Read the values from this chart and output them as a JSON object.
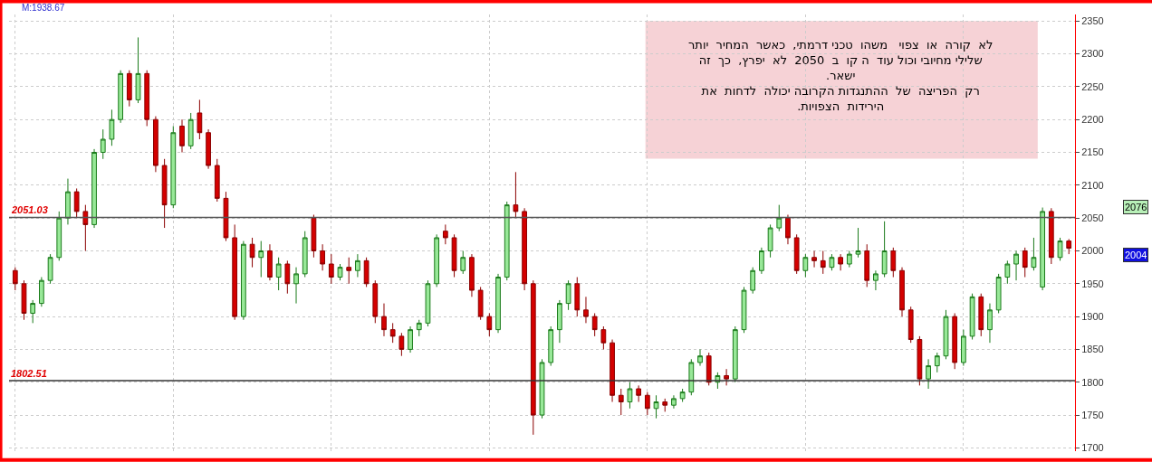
{
  "chart_data": {
    "type": "candlestick",
    "annotations": [
      {
        "text": "לא  קורה  או  צפוי   משהו  טכני דרמתי,  כאשר  המחיר  יותר\nשלילי מחיובי וכול עוד  ה קו  ב  2050  לא  יפרץ,  כך  זה\nישאר.\nרק  הפריצה  של  ההתנגדות הקרובה יכולה  לדחות  את\nהירידות  הצפויות."
      },
      "M:1938.67",
      "2076",
      "2004"
    ],
    "categories": [
      null,
      null,
      null,
      null,
      null,
      null,
      null,
      null,
      null,
      null,
      null,
      null,
      null,
      null,
      null,
      null,
      null,
      null,
      null,
      null,
      null,
      null,
      null,
      null,
      null,
      null,
      null,
      null,
      null,
      null,
      null,
      null,
      null,
      null,
      null,
      null,
      null,
      null,
      null,
      null,
      null,
      null,
      null,
      null,
      null,
      null,
      null,
      null,
      null,
      null,
      null,
      null,
      null,
      null,
      null,
      null,
      null,
      null,
      null,
      null,
      null,
      null,
      null,
      null,
      null,
      null,
      null,
      null,
      null,
      null,
      null,
      null,
      null,
      null,
      null,
      null,
      null,
      null,
      null,
      null,
      null,
      null,
      null,
      null,
      null,
      null,
      null,
      null,
      null,
      null,
      null,
      null,
      null,
      null,
      null,
      null,
      null,
      null,
      null,
      null,
      null,
      null,
      null,
      null,
      null,
      null,
      null,
      null,
      null,
      null,
      null,
      null,
      null,
      null,
      null,
      null,
      null,
      null,
      null,
      null,
      null
    ],
    "ohlc": [
      [
        1970,
        1975,
        1940,
        1950
      ],
      [
        1950,
        1955,
        1895,
        1905
      ],
      [
        1905,
        1925,
        1890,
        1920
      ],
      [
        1920,
        1960,
        1915,
        1955
      ],
      [
        1955,
        1995,
        1950,
        1990
      ],
      [
        1990,
        2060,
        1985,
        2050
      ],
      [
        2050,
        2110,
        2040,
        2090
      ],
      [
        2090,
        2095,
        2050,
        2060
      ],
      [
        2060,
        2070,
        2000,
        2040
      ],
      [
        2040,
        2155,
        2035,
        2150
      ],
      [
        2150,
        2185,
        2140,
        2170
      ],
      [
        2170,
        2215,
        2160,
        2200
      ],
      [
        2200,
        2275,
        2195,
        2270
      ],
      [
        2270,
        2275,
        2220,
        2230
      ],
      [
        2230,
        2325,
        2225,
        2270
      ],
      [
        2270,
        2275,
        2190,
        2200
      ],
      [
        2200,
        2205,
        2120,
        2130
      ],
      [
        2130,
        2140,
        2035,
        2070
      ],
      [
        2070,
        2190,
        2065,
        2180
      ],
      [
        2190,
        2200,
        2150,
        2160
      ],
      [
        2160,
        2210,
        2155,
        2200
      ],
      [
        2210,
        2230,
        2170,
        2180
      ],
      [
        2180,
        2185,
        2125,
        2130
      ],
      [
        2130,
        2140,
        2075,
        2080
      ],
      [
        2080,
        2090,
        2015,
        2020
      ],
      [
        2020,
        2040,
        1895,
        1900
      ],
      [
        1900,
        2015,
        1895,
        2010
      ],
      [
        2010,
        2020,
        1975,
        1990
      ],
      [
        1990,
        2015,
        1960,
        2000
      ],
      [
        2000,
        2010,
        1955,
        1960
      ],
      [
        1960,
        1990,
        1940,
        1980
      ],
      [
        1980,
        1985,
        1935,
        1950
      ],
      [
        1950,
        1975,
        1920,
        1965
      ],
      [
        1965,
        2030,
        1960,
        2020
      ],
      [
        2050,
        2055,
        1990,
        2000
      ],
      [
        2000,
        2010,
        1970,
        1980
      ],
      [
        1980,
        1995,
        1950,
        1960
      ],
      [
        1960,
        1980,
        1955,
        1975
      ],
      [
        1975,
        1990,
        1950,
        1970
      ],
      [
        1970,
        1995,
        1960,
        1985
      ],
      [
        1985,
        1990,
        1945,
        1950
      ],
      [
        1950,
        1955,
        1890,
        1900
      ],
      [
        1900,
        1920,
        1870,
        1880
      ],
      [
        1880,
        1890,
        1860,
        1870
      ],
      [
        1870,
        1875,
        1840,
        1850
      ],
      [
        1850,
        1885,
        1845,
        1880
      ],
      [
        1880,
        1895,
        1870,
        1890
      ],
      [
        1890,
        1955,
        1885,
        1950
      ],
      [
        1950,
        2025,
        1945,
        2020
      ],
      [
        2030,
        2040,
        2010,
        2020
      ],
      [
        2020,
        2025,
        1960,
        1970
      ],
      [
        1970,
        2000,
        1965,
        1990
      ],
      [
        1990,
        1995,
        1930,
        1940
      ],
      [
        1940,
        1945,
        1895,
        1900
      ],
      [
        1900,
        1905,
        1870,
        1880
      ],
      [
        1880,
        1965,
        1875,
        1960
      ],
      [
        1960,
        2075,
        1955,
        2070
      ],
      [
        2070,
        2120,
        2050,
        2060
      ],
      [
        2060,
        2065,
        1940,
        1950
      ],
      [
        1950,
        1955,
        1720,
        1750
      ],
      [
        1750,
        1835,
        1745,
        1830
      ],
      [
        1830,
        1885,
        1825,
        1880
      ],
      [
        1880,
        1925,
        1860,
        1920
      ],
      [
        1920,
        1955,
        1910,
        1950
      ],
      [
        1950,
        1960,
        1900,
        1910
      ],
      [
        1910,
        1930,
        1890,
        1900
      ],
      [
        1900,
        1905,
        1870,
        1880
      ],
      [
        1880,
        1885,
        1850,
        1860
      ],
      [
        1860,
        1865,
        1770,
        1780
      ],
      [
        1780,
        1790,
        1750,
        1770
      ],
      [
        1770,
        1800,
        1760,
        1790
      ],
      [
        1790,
        1795,
        1770,
        1780
      ],
      [
        1780,
        1785,
        1750,
        1760
      ],
      [
        1760,
        1780,
        1745,
        1770
      ],
      [
        1770,
        1775,
        1755,
        1765
      ],
      [
        1765,
        1780,
        1760,
        1775
      ],
      [
        1775,
        1790,
        1770,
        1785
      ],
      [
        1785,
        1835,
        1780,
        1830
      ],
      [
        1830,
        1850,
        1825,
        1840
      ],
      [
        1840,
        1845,
        1795,
        1800
      ],
      [
        1800,
        1815,
        1790,
        1810
      ],
      [
        1810,
        1820,
        1795,
        1805
      ],
      [
        1805,
        1885,
        1800,
        1880
      ],
      [
        1880,
        1945,
        1875,
        1940
      ],
      [
        1940,
        1975,
        1935,
        1970
      ],
      [
        1970,
        2005,
        1965,
        2000
      ],
      [
        2000,
        2040,
        1990,
        2035
      ],
      [
        2035,
        2070,
        2030,
        2050
      ],
      [
        2050,
        2055,
        2010,
        2020
      ],
      [
        2020,
        2025,
        1965,
        1970
      ],
      [
        1970,
        1995,
        1960,
        1990
      ],
      [
        1990,
        2000,
        1975,
        1985
      ],
      [
        1985,
        2000,
        1965,
        1975
      ],
      [
        1975,
        1995,
        1970,
        1990
      ],
      [
        1990,
        1995,
        1970,
        1980
      ],
      [
        1980,
        2000,
        1975,
        1995
      ],
      [
        1995,
        2035,
        1990,
        2000
      ],
      [
        2000,
        2010,
        1945,
        1955
      ],
      [
        1955,
        1970,
        1940,
        1965
      ],
      [
        1965,
        2045,
        1960,
        2000
      ],
      [
        2000,
        2005,
        1960,
        1970
      ],
      [
        1970,
        1975,
        1900,
        1910
      ],
      [
        1910,
        1915,
        1860,
        1865
      ],
      [
        1865,
        1870,
        1795,
        1805
      ],
      [
        1805,
        1835,
        1790,
        1825
      ],
      [
        1825,
        1845,
        1815,
        1840
      ],
      [
        1840,
        1910,
        1835,
        1900
      ],
      [
        1900,
        1905,
        1820,
        1830
      ],
      [
        1830,
        1880,
        1825,
        1870
      ],
      [
        1870,
        1935,
        1865,
        1930
      ],
      [
        1930,
        1935,
        1870,
        1880
      ],
      [
        1880,
        1920,
        1860,
        1910
      ],
      [
        1910,
        1965,
        1905,
        1960
      ],
      [
        1960,
        1985,
        1950,
        1980
      ],
      [
        1980,
        2000,
        1955,
        1995
      ],
      [
        2000,
        2005,
        1960,
        1975
      ],
      [
        1975,
        2020,
        1970,
        1990
      ],
      [
        1945,
        2066,
        1940,
        2060
      ],
      [
        2060,
        2065,
        1980,
        1990
      ],
      [
        1990,
        2020,
        1985,
        2015
      ],
      [
        2015,
        2018,
        1995,
        2004
      ]
    ],
    "grid": true,
    "ylim": [
      1695,
      2360
    ],
    "yticks": [
      1700,
      1750,
      1800,
      1850,
      1900,
      1950,
      2000,
      2050,
      2100,
      2150,
      2200,
      2250,
      2300,
      2350
    ],
    "ref_lines": [
      {
        "axis": "y",
        "value": 2051.03,
        "label": "2051.03",
        "color": "#555555"
      },
      {
        "axis": "y",
        "value": 1802.51,
        "label": "1802.51",
        "color": "#333333"
      }
    ],
    "tick_labels": "y",
    "legend": false
  }
}
